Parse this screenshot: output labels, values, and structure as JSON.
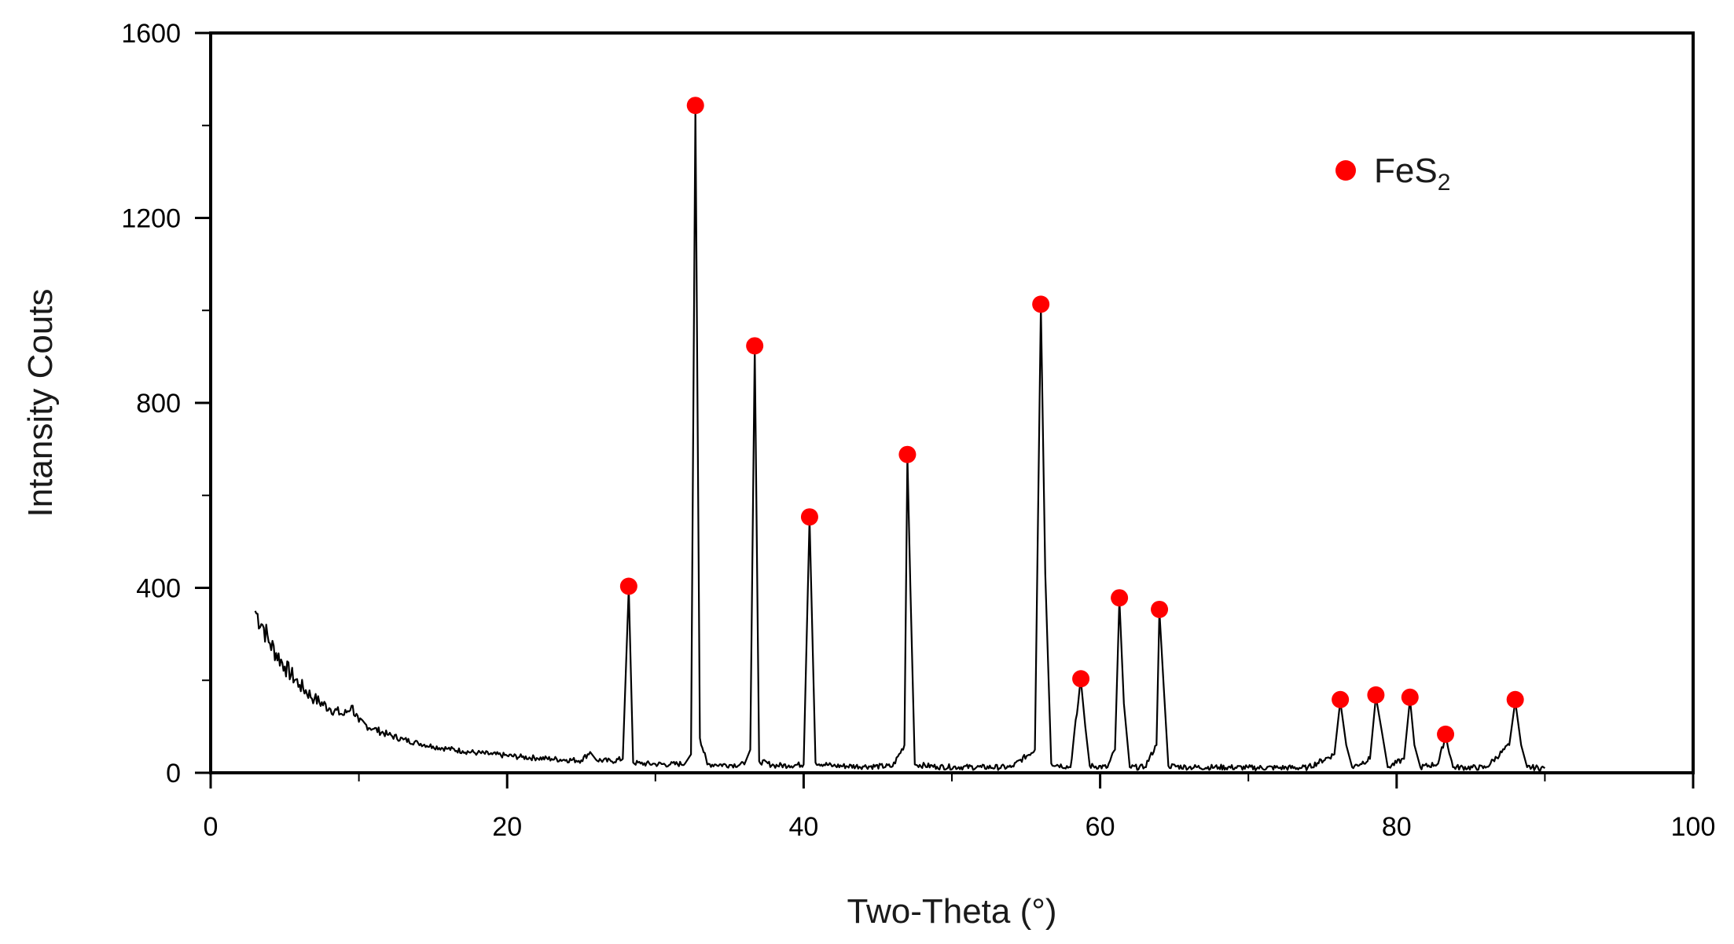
{
  "chart_data": {
    "type": "line",
    "xlabel": "Two-Theta (°)",
    "ylabel": "Intansity Couts",
    "xlim": [
      0,
      100
    ],
    "ylim": [
      0,
      1600
    ],
    "x_ticks": [
      "0",
      "20",
      "40",
      "60",
      "80",
      "100"
    ],
    "y_ticks": [
      "0",
      "400",
      "800",
      "1200",
      "1600"
    ],
    "legend": {
      "label_main": "FeS",
      "label_sub": "2",
      "marker_color": "#ff0000",
      "placement": "top-right"
    },
    "line_color": "#000000",
    "series": [
      {
        "values": [
          [
            3,
            350
          ],
          [
            3.5,
            320
          ],
          [
            4,
            280
          ],
          [
            5,
            230
          ],
          [
            6,
            190
          ],
          [
            7,
            160
          ],
          [
            8,
            140
          ],
          [
            9,
            125
          ],
          [
            9.5,
            145
          ],
          [
            10,
            110
          ],
          [
            11,
            95
          ],
          [
            12,
            82
          ],
          [
            13,
            72
          ],
          [
            14,
            64
          ],
          [
            15,
            57
          ],
          [
            16,
            52
          ],
          [
            17,
            47
          ],
          [
            18,
            43
          ],
          [
            19,
            40
          ],
          [
            20,
            37
          ],
          [
            21,
            34
          ],
          [
            22,
            32
          ],
          [
            23,
            30
          ],
          [
            24,
            28
          ],
          [
            25,
            27
          ],
          [
            25.6,
            45
          ],
          [
            26,
            28
          ],
          [
            27,
            25
          ],
          [
            27.8,
            30
          ],
          [
            28.2,
            400
          ],
          [
            28.5,
            22
          ],
          [
            29,
            20
          ],
          [
            30,
            19
          ],
          [
            31,
            18
          ],
          [
            32,
            20
          ],
          [
            32.4,
            40
          ],
          [
            32.7,
            1440
          ],
          [
            33.0,
            75
          ],
          [
            33.5,
            18
          ],
          [
            34,
            18
          ],
          [
            35,
            17
          ],
          [
            36,
            18
          ],
          [
            36.4,
            50
          ],
          [
            36.7,
            920
          ],
          [
            37.0,
            25
          ],
          [
            38,
            16
          ],
          [
            39,
            16
          ],
          [
            40,
            18
          ],
          [
            40.4,
            550
          ],
          [
            40.8,
            22
          ],
          [
            42,
            15
          ],
          [
            44,
            14
          ],
          [
            46,
            14
          ],
          [
            46.8,
            60
          ],
          [
            47.0,
            685
          ],
          [
            47.2,
            400
          ],
          [
            47.5,
            18
          ],
          [
            49,
            13
          ],
          [
            52,
            12
          ],
          [
            54,
            12
          ],
          [
            55.6,
            50
          ],
          [
            56.0,
            1010
          ],
          [
            56.3,
            430
          ],
          [
            56.7,
            20
          ],
          [
            58,
            12
          ],
          [
            58.7,
            200
          ],
          [
            59.0,
            100
          ],
          [
            59.3,
            15
          ],
          [
            60.5,
            12
          ],
          [
            61.0,
            50
          ],
          [
            61.3,
            375
          ],
          [
            61.6,
            150
          ],
          [
            62,
            12
          ],
          [
            63,
            12
          ],
          [
            63.8,
            60
          ],
          [
            64.0,
            350
          ],
          [
            64.3,
            180
          ],
          [
            64.6,
            15
          ],
          [
            66,
            12
          ],
          [
            68,
            12
          ],
          [
            70,
            11
          ],
          [
            72,
            11
          ],
          [
            74,
            11
          ],
          [
            75.8,
            40
          ],
          [
            76.2,
            155
          ],
          [
            76.6,
            60
          ],
          [
            77,
            12
          ],
          [
            78.2,
            30
          ],
          [
            78.6,
            165
          ],
          [
            79.0,
            90
          ],
          [
            79.4,
            12
          ],
          [
            80.5,
            30
          ],
          [
            80.9,
            160
          ],
          [
            81.2,
            60
          ],
          [
            81.6,
            12
          ],
          [
            82.8,
            20
          ],
          [
            83.3,
            80
          ],
          [
            83.8,
            12
          ],
          [
            86,
            11
          ],
          [
            87.6,
            60
          ],
          [
            88.0,
            155
          ],
          [
            88.4,
            60
          ],
          [
            88.8,
            12
          ],
          [
            90,
            10
          ]
        ]
      }
    ],
    "peak_markers": [
      [
        28.2,
        400
      ],
      [
        32.7,
        1440
      ],
      [
        36.7,
        920
      ],
      [
        40.4,
        550
      ],
      [
        47.0,
        685
      ],
      [
        56.0,
        1010
      ],
      [
        58.7,
        200
      ],
      [
        61.3,
        375
      ],
      [
        64.0,
        350
      ],
      [
        76.2,
        155
      ],
      [
        78.6,
        165
      ],
      [
        80.9,
        160
      ],
      [
        83.3,
        80
      ],
      [
        88.0,
        155
      ]
    ]
  }
}
